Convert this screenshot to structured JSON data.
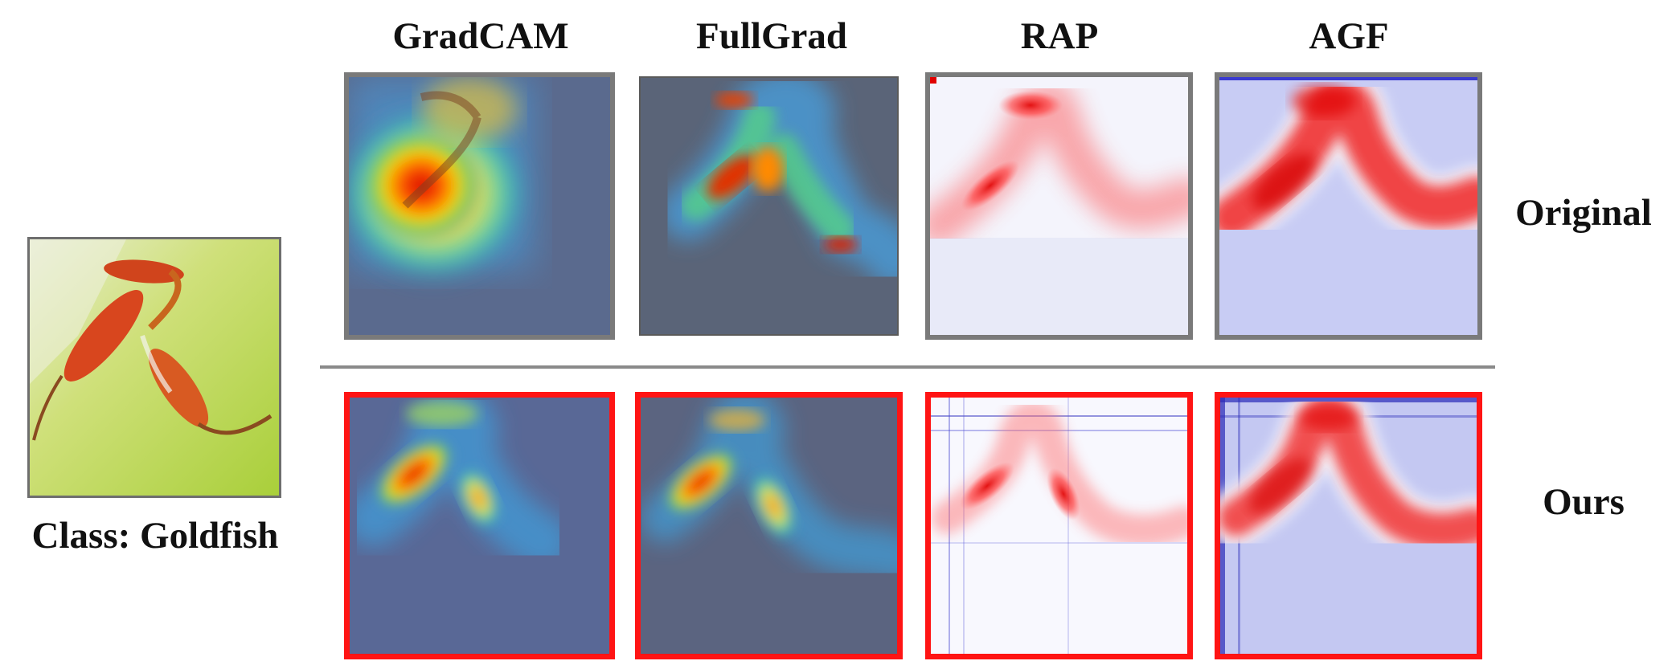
{
  "columns": [
    "GradCAM",
    "FullGrad",
    "RAP",
    "AGF"
  ],
  "rows": {
    "original": "Original",
    "ours": "Ours"
  },
  "input_caption": "Class: Goldfish",
  "colors": {
    "ours_frame": "#ff1414",
    "original_frame": "#7a7a7a",
    "divider": "#8a8a8a"
  }
}
